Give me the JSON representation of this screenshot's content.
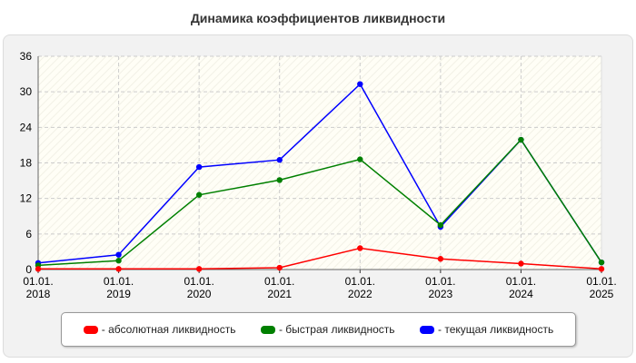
{
  "chart_data": {
    "type": "line",
    "title": "Динамика коэффициентов ликвидности",
    "xlabel": "",
    "ylabel": "",
    "categories": [
      "01.01.\n2018",
      "01.01.\n2019",
      "01.01.\n2020",
      "01.01.\n2021",
      "01.01.\n2022",
      "01.01.\n2023",
      "01.01.\n2024",
      "01.01.\n2025"
    ],
    "ylim": [
      0,
      36
    ],
    "yticks": [
      0,
      6,
      12,
      18,
      24,
      30,
      36
    ],
    "grid": true,
    "legend_position": "bottom",
    "series": [
      {
        "name": "- абсолютная ликвидность",
        "color": "#ff0000",
        "values": [
          0.1,
          0.1,
          0.1,
          0.3,
          3.6,
          1.8,
          1.0,
          0.1
        ]
      },
      {
        "name": "- быстрая ликвидность",
        "color": "#008000",
        "values": [
          0.7,
          1.5,
          12.6,
          15.1,
          18.6,
          7.5,
          21.9,
          1.2
        ]
      },
      {
        "name": "- текущая ликвидность",
        "color": "#0000ff",
        "values": [
          1.1,
          2.5,
          17.3,
          18.5,
          31.3,
          7.2,
          21.9,
          1.2
        ]
      }
    ]
  }
}
